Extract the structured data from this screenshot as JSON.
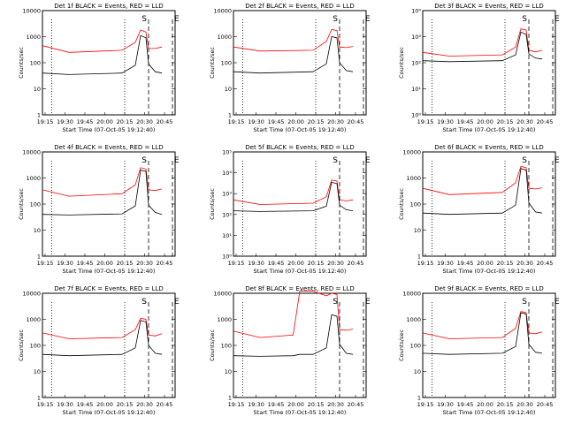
{
  "chart_data": {
    "type": "line",
    "x_axis": {
      "label": "Start Time (07-Oct-05 19:12:40)",
      "ticks": [
        "19:15",
        "19:30",
        "19:45",
        "20:00",
        "20:15",
        "20:30",
        "20:45"
      ],
      "range_minutes": [
        0,
        100
      ]
    },
    "y_axis": {
      "label": "Counts/sec",
      "scale": "log"
    },
    "colors": {
      "events": "#000000",
      "lld": "#ff0000"
    },
    "markers": {
      "s": "S",
      "e": "E"
    },
    "panels": [
      {
        "title": "Det 1f BLACK = Events, RED = LLD",
        "ymax_exp": 4,
        "ymax_label": "10000",
        "exp_ticks": false,
        "events": [
          [
            0,
            40
          ],
          [
            20,
            35
          ],
          [
            60,
            40
          ],
          [
            70,
            80
          ],
          [
            74,
            1100
          ],
          [
            78,
            900
          ],
          [
            80,
            90
          ],
          [
            85,
            45
          ],
          [
            90,
            40
          ]
        ],
        "lld": [
          [
            0,
            450
          ],
          [
            20,
            250
          ],
          [
            60,
            300
          ],
          [
            70,
            600
          ],
          [
            74,
            1800
          ],
          [
            78,
            1500
          ],
          [
            80,
            350
          ],
          [
            85,
            350
          ],
          [
            90,
            400
          ]
        ]
      },
      {
        "title": "Det 2f BLACK = Events, RED = LLD",
        "ymax_exp": 4,
        "ymax_label": "10000",
        "exp_ticks": false,
        "events": [
          [
            0,
            45
          ],
          [
            20,
            40
          ],
          [
            60,
            45
          ],
          [
            70,
            90
          ],
          [
            74,
            1000
          ],
          [
            78,
            900
          ],
          [
            80,
            100
          ],
          [
            85,
            50
          ],
          [
            90,
            45
          ]
        ],
        "lld": [
          [
            0,
            400
          ],
          [
            20,
            280
          ],
          [
            60,
            300
          ],
          [
            70,
            650
          ],
          [
            74,
            1900
          ],
          [
            78,
            1700
          ],
          [
            80,
            400
          ],
          [
            85,
            380
          ],
          [
            90,
            420
          ]
        ]
      },
      {
        "title": "Det 3f BLACK = Events, RED = LLD",
        "ymax_exp": 4,
        "ymax_label": "10⁴",
        "exp_ticks": true,
        "events": [
          [
            0,
            120
          ],
          [
            20,
            110
          ],
          [
            60,
            120
          ],
          [
            70,
            200
          ],
          [
            74,
            1500
          ],
          [
            78,
            1200
          ],
          [
            80,
            220
          ],
          [
            85,
            150
          ],
          [
            90,
            140
          ]
        ],
        "lld": [
          [
            0,
            250
          ],
          [
            20,
            180
          ],
          [
            60,
            200
          ],
          [
            70,
            400
          ],
          [
            74,
            2000
          ],
          [
            78,
            1800
          ],
          [
            80,
            300
          ],
          [
            85,
            260
          ],
          [
            90,
            300
          ]
        ]
      },
      {
        "title": "Det 4f BLACK = Events, RED = LLD",
        "ymax_exp": 4,
        "ymax_label": "10000",
        "exp_ticks": false,
        "events": [
          [
            0,
            40
          ],
          [
            20,
            38
          ],
          [
            60,
            42
          ],
          [
            70,
            85
          ],
          [
            74,
            2000
          ],
          [
            78,
            1800
          ],
          [
            80,
            90
          ],
          [
            85,
            48
          ],
          [
            90,
            40
          ]
        ],
        "lld": [
          [
            0,
            350
          ],
          [
            20,
            200
          ],
          [
            60,
            250
          ],
          [
            70,
            550
          ],
          [
            74,
            2500
          ],
          [
            78,
            2200
          ],
          [
            80,
            350
          ],
          [
            85,
            330
          ],
          [
            90,
            380
          ]
        ]
      },
      {
        "title": "Det 5f BLACK = Events, RED = LLD",
        "ymax_exp": 5,
        "ymax_label": "10⁵",
        "exp_ticks": true,
        "events": [
          [
            0,
            150
          ],
          [
            20,
            140
          ],
          [
            60,
            150
          ],
          [
            70,
            250
          ],
          [
            74,
            3500
          ],
          [
            78,
            3000
          ],
          [
            80,
            280
          ],
          [
            85,
            170
          ],
          [
            90,
            150
          ]
        ],
        "lld": [
          [
            0,
            500
          ],
          [
            20,
            300
          ],
          [
            60,
            350
          ],
          [
            70,
            700
          ],
          [
            74,
            4500
          ],
          [
            78,
            4000
          ],
          [
            80,
            500
          ],
          [
            85,
            450
          ],
          [
            90,
            500
          ]
        ]
      },
      {
        "title": "Det 6f BLACK = Events, RED = LLD",
        "ymax_exp": 4,
        "ymax_label": "10000",
        "exp_ticks": false,
        "events": [
          [
            0,
            45
          ],
          [
            20,
            40
          ],
          [
            60,
            45
          ],
          [
            70,
            90
          ],
          [
            74,
            2300
          ],
          [
            78,
            2000
          ],
          [
            80,
            110
          ],
          [
            85,
            50
          ],
          [
            90,
            45
          ]
        ],
        "lld": [
          [
            0,
            400
          ],
          [
            20,
            230
          ],
          [
            60,
            280
          ],
          [
            70,
            650
          ],
          [
            74,
            2800
          ],
          [
            78,
            2500
          ],
          [
            80,
            400
          ],
          [
            85,
            380
          ],
          [
            90,
            420
          ]
        ]
      },
      {
        "title": "Det 7f BLACK = Events, RED = LLD",
        "ymax_exp": 4,
        "ymax_label": "10000",
        "exp_ticks": false,
        "events": [
          [
            0,
            45
          ],
          [
            20,
            40
          ],
          [
            60,
            45
          ],
          [
            70,
            80
          ],
          [
            74,
            900
          ],
          [
            78,
            800
          ],
          [
            80,
            100
          ],
          [
            85,
            50
          ],
          [
            90,
            45
          ]
        ],
        "lld": [
          [
            0,
            300
          ],
          [
            20,
            180
          ],
          [
            60,
            200
          ],
          [
            70,
            400
          ],
          [
            74,
            1100
          ],
          [
            78,
            1000
          ],
          [
            80,
            250
          ],
          [
            85,
            230
          ],
          [
            90,
            280
          ]
        ]
      },
      {
        "title": "Det 8f BLACK = Events, RED = LLD",
        "ymax_exp": 4,
        "ymax_label": "10000",
        "exp_ticks": false,
        "events": [
          [
            0,
            40
          ],
          [
            20,
            38
          ],
          [
            45,
            40
          ],
          [
            50,
            45
          ],
          [
            60,
            45
          ],
          [
            70,
            80
          ],
          [
            74,
            1500
          ],
          [
            78,
            1300
          ],
          [
            80,
            110
          ],
          [
            85,
            50
          ],
          [
            90,
            45
          ]
        ],
        "lld": [
          [
            0,
            350
          ],
          [
            20,
            200
          ],
          [
            45,
            250
          ],
          [
            50,
            12000
          ],
          [
            60,
            12000
          ],
          [
            70,
            8000
          ],
          [
            74,
            10000
          ],
          [
            78,
            9000
          ],
          [
            80,
            400
          ],
          [
            85,
            380
          ],
          [
            90,
            420
          ]
        ]
      },
      {
        "title": "Det 9f BLACK = Events, RED = LLD",
        "ymax_exp": 4,
        "ymax_label": "10000",
        "exp_ticks": false,
        "events": [
          [
            0,
            50
          ],
          [
            20,
            45
          ],
          [
            60,
            50
          ],
          [
            70,
            90
          ],
          [
            74,
            1800
          ],
          [
            78,
            1600
          ],
          [
            80,
            110
          ],
          [
            85,
            55
          ],
          [
            90,
            50
          ]
        ],
        "lld": [
          [
            0,
            300
          ],
          [
            20,
            180
          ],
          [
            60,
            200
          ],
          [
            70,
            450
          ],
          [
            74,
            2000
          ],
          [
            78,
            1800
          ],
          [
            80,
            300
          ],
          [
            85,
            280
          ],
          [
            90,
            330
          ]
        ]
      }
    ]
  }
}
